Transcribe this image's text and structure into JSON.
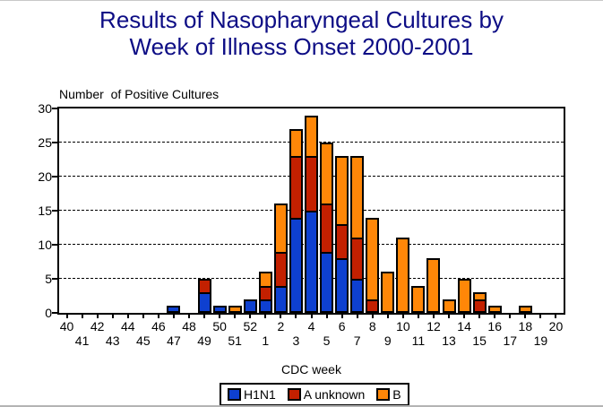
{
  "title": {
    "line1": "Results of Nasopharyngeal Cultures by",
    "line2": "Week of Illness Onset 2000-2001"
  },
  "chart_data": {
    "type": "bar",
    "stacked": true,
    "title": "Results of Nasopharyngeal Cultures by Week of Illness Onset 2000-2001",
    "ylabel": "Number  of Positive Cultures",
    "xlabel": "CDC week",
    "ylim": [
      0,
      30
    ],
    "ytick_interval": 5,
    "yticks": [
      0,
      5,
      10,
      15,
      20,
      25,
      30
    ],
    "grid": "horizontal dashed lines at 5,10,15,20,25",
    "legend_position": "bottom-center boxed",
    "x_label_layout": "staggered two rows",
    "categories": [
      "40",
      "41",
      "42",
      "43",
      "44",
      "45",
      "46",
      "47",
      "48",
      "49",
      "50",
      "51",
      "52",
      "1",
      "2",
      "3",
      "4",
      "5",
      "6",
      "7",
      "8",
      "9",
      "10",
      "11",
      "12",
      "13",
      "14",
      "15",
      "16",
      "17",
      "18",
      "19",
      "20"
    ],
    "series": [
      {
        "name": "H1N1",
        "color": "#0E40D0",
        "values": [
          0,
          0,
          0,
          0,
          0,
          0,
          0,
          1,
          0,
          3,
          1,
          0,
          2,
          2,
          4,
          14,
          15,
          9,
          8,
          5,
          0,
          0,
          0,
          0,
          0,
          0,
          0,
          0,
          0,
          0,
          0,
          0,
          0
        ]
      },
      {
        "name": "A unknown",
        "color": "#C32000",
        "values": [
          0,
          0,
          0,
          0,
          0,
          0,
          0,
          0,
          0,
          2,
          0,
          0,
          0,
          2,
          5,
          9,
          8,
          7,
          5,
          6,
          2,
          0,
          0,
          0,
          0,
          0,
          0,
          2,
          0,
          0,
          0,
          0,
          0
        ]
      },
      {
        "name": "B",
        "color": "#FF8708",
        "values": [
          0,
          0,
          0,
          0,
          0,
          0,
          0,
          0,
          0,
          0,
          0,
          1,
          0,
          2,
          7,
          4,
          6,
          9,
          10,
          12,
          12,
          6,
          11,
          4,
          8,
          2,
          5,
          1,
          1,
          0,
          1,
          0,
          0
        ]
      }
    ],
    "totals_by_week": [
      0,
      0,
      0,
      0,
      0,
      0,
      0,
      1,
      0,
      5,
      1,
      1,
      2,
      6,
      16,
      27,
      29,
      25,
      23,
      23,
      14,
      6,
      11,
      4,
      8,
      2,
      5,
      3,
      1,
      0,
      1,
      0,
      0
    ]
  },
  "colors": {
    "title_text": "#0D0D85",
    "axis_and_grid": "#000000",
    "background": "#ffffff"
  }
}
